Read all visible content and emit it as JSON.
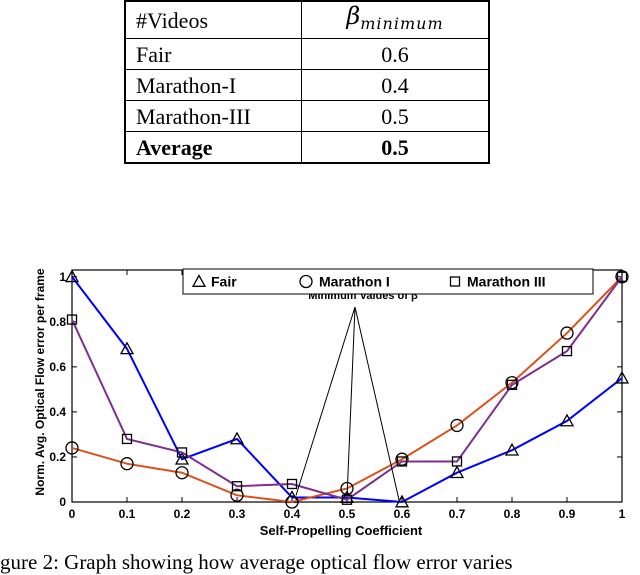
{
  "table": {
    "header": [
      "#Videos",
      "β",
      "minimum"
    ],
    "rows": [
      {
        "label": "Fair",
        "value": "0.6"
      },
      {
        "label": "Marathon-I",
        "value": "0.4"
      },
      {
        "label": "Marathon-III",
        "value": "0.5"
      },
      {
        "label": "Average",
        "value": "0.5",
        "bold": true
      }
    ]
  },
  "chart_data": {
    "type": "line",
    "xlabel": "Self-Propelling Coefficient",
    "ylabel": "Norm. Avg. Optical Flow error per frame",
    "x": [
      0,
      0.1,
      0.2,
      0.3,
      0.4,
      0.5,
      0.6,
      0.7,
      0.8,
      0.9,
      1
    ],
    "xticks": [
      "0",
      "0.1",
      "0.2",
      "0.3",
      "0.4",
      "0.5",
      "0.6",
      "0.7",
      "0.8",
      "0.9",
      "1"
    ],
    "yticks": [
      "0",
      "0.2",
      "0.4",
      "0.6",
      "0.8",
      "1"
    ],
    "xlim": [
      0,
      1
    ],
    "ylim": [
      0,
      1.03
    ],
    "legend_position": "top-right",
    "series": [
      {
        "name": "Fair",
        "color": "#0000ff",
        "marker": "triangle",
        "values": [
          1.0,
          0.68,
          0.19,
          0.28,
          0.02,
          0.02,
          0.0,
          0.13,
          0.23,
          0.36,
          0.55
        ]
      },
      {
        "name": "Marathon I",
        "color": "#d95319",
        "marker": "circle",
        "values": [
          0.24,
          0.17,
          0.13,
          0.03,
          0.0,
          0.06,
          0.19,
          0.34,
          0.53,
          0.75,
          1.0
        ]
      },
      {
        "name": "Marathon III",
        "color": "#7e2f8e",
        "marker": "square",
        "values": [
          0.81,
          0.28,
          0.22,
          0.07,
          0.08,
          0.01,
          0.18,
          0.18,
          0.52,
          0.67,
          1.0
        ]
      }
    ],
    "annotation": {
      "text": "Minimum Values of β",
      "points": [
        [
          0.4,
          0.02
        ],
        [
          0.5,
          0.01
        ],
        [
          0.6,
          0.0
        ]
      ]
    }
  },
  "caption": "gure 2: Graph showing how average optical flow error varies"
}
